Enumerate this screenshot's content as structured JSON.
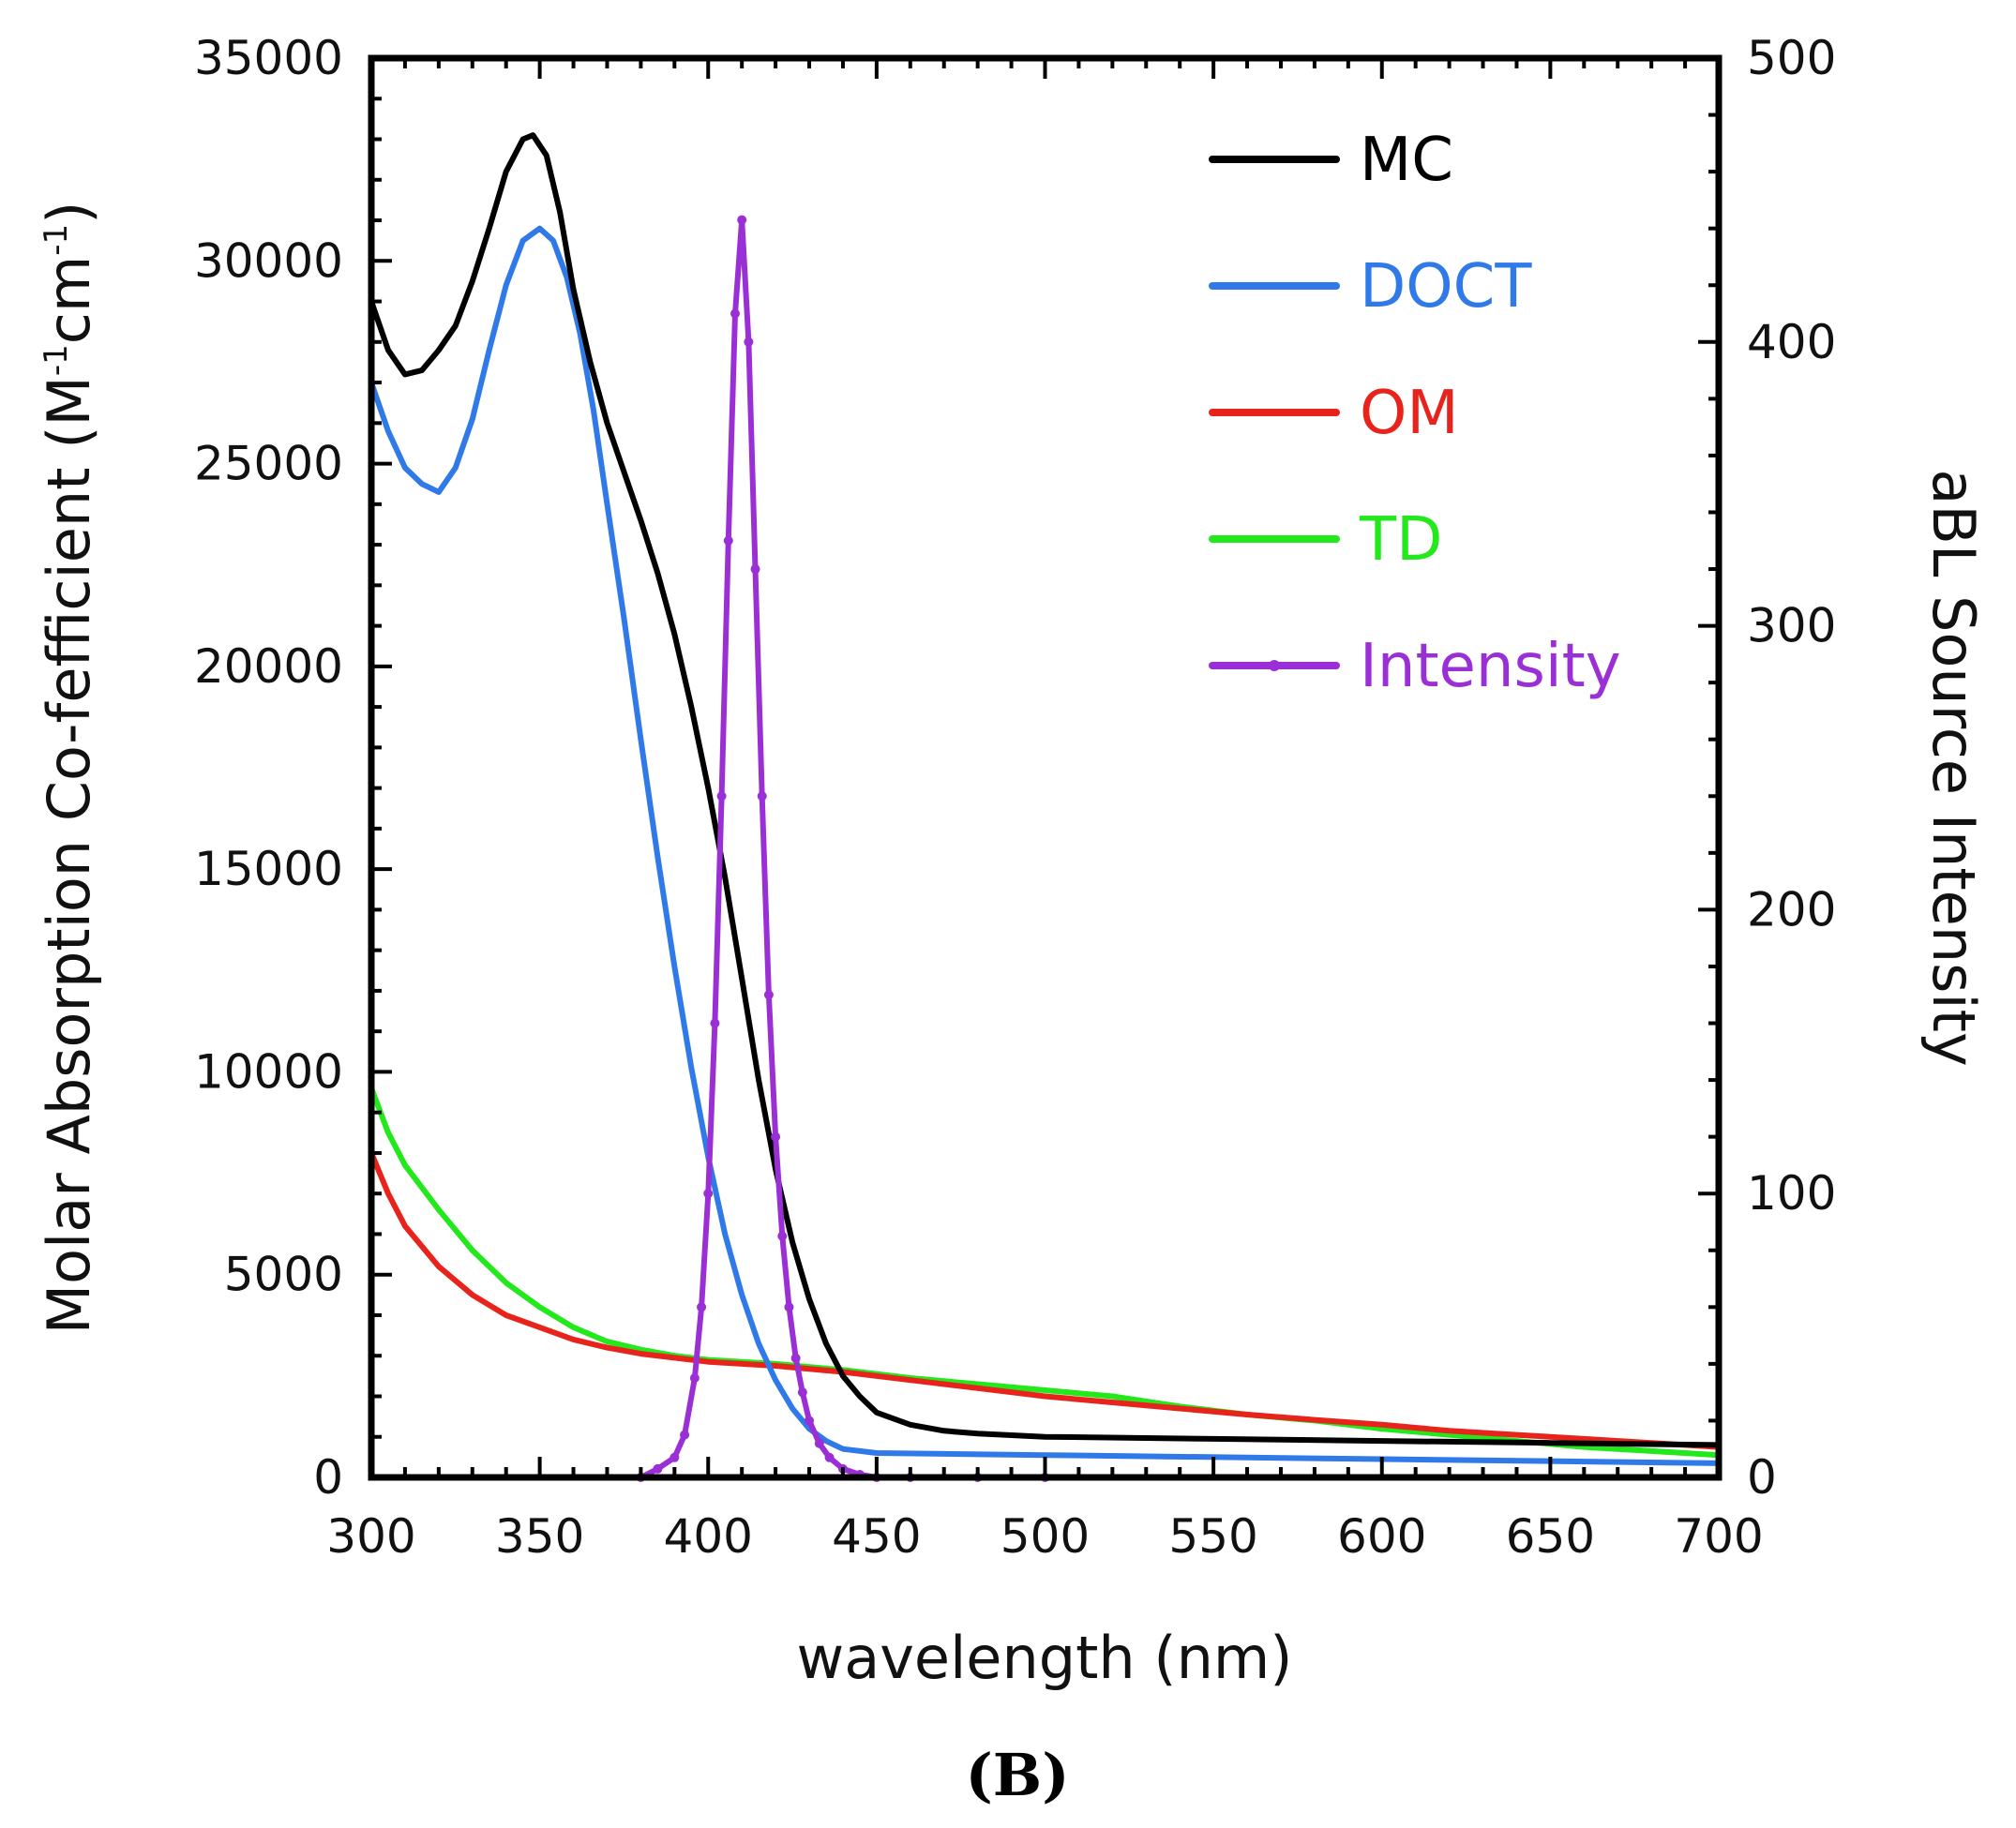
{
  "chart_data": {
    "type": "line",
    "title": "",
    "panel_label": "(B)",
    "xlabel": "wavelength (nm)",
    "ylabel_left": "Molar Absorption Co-fefficient (M-1cm-1)",
    "ylabel_left_parts": {
      "main": "Molar Absorption Co-fefficient (M",
      "sup1": "-1",
      "mid": "cm",
      "sup2": "-1",
      "end": ")"
    },
    "ylabel_right": "aBL Source Intensity",
    "xlim": [
      300,
      700
    ],
    "ylim_left": [
      0,
      35000
    ],
    "ylim_right": [
      0,
      500
    ],
    "x_ticks": [
      "300",
      "350",
      "400",
      "450",
      "500",
      "550",
      "600",
      "650",
      "700"
    ],
    "y_left_ticks": [
      "0",
      "5000",
      "10000",
      "15000",
      "20000",
      "25000",
      "30000",
      "35000"
    ],
    "y_right_ticks": [
      "0",
      "100",
      "200",
      "300",
      "400",
      "500"
    ],
    "legend_position": "top-right",
    "series": [
      {
        "name": "MC",
        "axis": "left",
        "color": "#000000",
        "points": [
          [
            300,
            29000
          ],
          [
            305,
            27800
          ],
          [
            310,
            27200
          ],
          [
            315,
            27300
          ],
          [
            320,
            27800
          ],
          [
            325,
            28400
          ],
          [
            330,
            29500
          ],
          [
            335,
            30800
          ],
          [
            340,
            32200
          ],
          [
            345,
            33000
          ],
          [
            348,
            33100
          ],
          [
            352,
            32600
          ],
          [
            356,
            31200
          ],
          [
            360,
            29300
          ],
          [
            365,
            27500
          ],
          [
            370,
            26000
          ],
          [
            375,
            24800
          ],
          [
            380,
            23600
          ],
          [
            385,
            22300
          ],
          [
            390,
            20800
          ],
          [
            395,
            19000
          ],
          [
            400,
            17000
          ],
          [
            405,
            14800
          ],
          [
            410,
            12300
          ],
          [
            415,
            9800
          ],
          [
            420,
            7600
          ],
          [
            425,
            5800
          ],
          [
            430,
            4400
          ],
          [
            435,
            3300
          ],
          [
            440,
            2500
          ],
          [
            445,
            2000
          ],
          [
            450,
            1600
          ],
          [
            460,
            1300
          ],
          [
            470,
            1150
          ],
          [
            480,
            1080
          ],
          [
            500,
            1000
          ],
          [
            550,
            950
          ],
          [
            600,
            900
          ],
          [
            650,
            850
          ],
          [
            700,
            800
          ]
        ]
      },
      {
        "name": "DOCT",
        "axis": "left",
        "color": "#2f79e8",
        "points": [
          [
            300,
            27000
          ],
          [
            305,
            25800
          ],
          [
            310,
            24900
          ],
          [
            315,
            24500
          ],
          [
            320,
            24300
          ],
          [
            325,
            24900
          ],
          [
            330,
            26100
          ],
          [
            335,
            27800
          ],
          [
            340,
            29400
          ],
          [
            345,
            30500
          ],
          [
            350,
            30800
          ],
          [
            354,
            30500
          ],
          [
            358,
            29600
          ],
          [
            362,
            28200
          ],
          [
            366,
            26300
          ],
          [
            370,
            24000
          ],
          [
            375,
            21200
          ],
          [
            380,
            18200
          ],
          [
            385,
            15300
          ],
          [
            390,
            12600
          ],
          [
            395,
            10100
          ],
          [
            400,
            7900
          ],
          [
            405,
            6000
          ],
          [
            410,
            4500
          ],
          [
            415,
            3300
          ],
          [
            420,
            2400
          ],
          [
            425,
            1700
          ],
          [
            430,
            1200
          ],
          [
            435,
            900
          ],
          [
            440,
            700
          ],
          [
            450,
            600
          ],
          [
            500,
            550
          ],
          [
            600,
            450
          ],
          [
            700,
            350
          ]
        ]
      },
      {
        "name": "OM",
        "axis": "left",
        "color": "#e8231c",
        "points": [
          [
            300,
            8000
          ],
          [
            305,
            7000
          ],
          [
            310,
            6200
          ],
          [
            320,
            5200
          ],
          [
            330,
            4500
          ],
          [
            340,
            4000
          ],
          [
            350,
            3700
          ],
          [
            360,
            3400
          ],
          [
            370,
            3200
          ],
          [
            380,
            3050
          ],
          [
            390,
            2950
          ],
          [
            400,
            2850
          ],
          [
            420,
            2750
          ],
          [
            440,
            2600
          ],
          [
            460,
            2400
          ],
          [
            480,
            2200
          ],
          [
            500,
            2000
          ],
          [
            520,
            1850
          ],
          [
            540,
            1700
          ],
          [
            560,
            1550
          ],
          [
            580,
            1420
          ],
          [
            600,
            1300
          ],
          [
            620,
            1150
          ],
          [
            640,
            1050
          ],
          [
            660,
            950
          ],
          [
            680,
            850
          ],
          [
            700,
            750
          ]
        ]
      },
      {
        "name": "TD",
        "axis": "left",
        "color": "#22e81c",
        "points": [
          [
            300,
            9600
          ],
          [
            305,
            8500
          ],
          [
            310,
            7700
          ],
          [
            320,
            6600
          ],
          [
            330,
            5600
          ],
          [
            340,
            4800
          ],
          [
            350,
            4200
          ],
          [
            360,
            3700
          ],
          [
            370,
            3350
          ],
          [
            380,
            3150
          ],
          [
            390,
            3000
          ],
          [
            400,
            2900
          ],
          [
            420,
            2800
          ],
          [
            440,
            2650
          ],
          [
            460,
            2450
          ],
          [
            480,
            2300
          ],
          [
            500,
            2150
          ],
          [
            520,
            2000
          ],
          [
            540,
            1750
          ],
          [
            560,
            1550
          ],
          [
            580,
            1400
          ],
          [
            600,
            1200
          ],
          [
            620,
            1050
          ],
          [
            640,
            900
          ],
          [
            660,
            750
          ],
          [
            680,
            650
          ],
          [
            700,
            550
          ]
        ]
      },
      {
        "name": "Intensity",
        "axis": "right",
        "color": "#9b2fd6",
        "marker": "dot",
        "points": [
          [
            380,
            0
          ],
          [
            385,
            3
          ],
          [
            390,
            7
          ],
          [
            393,
            15
          ],
          [
            396,
            35
          ],
          [
            398,
            60
          ],
          [
            400,
            100
          ],
          [
            402,
            160
          ],
          [
            404,
            240
          ],
          [
            406,
            330
          ],
          [
            408,
            410
          ],
          [
            410,
            443
          ],
          [
            412,
            400
          ],
          [
            414,
            320
          ],
          [
            416,
            240
          ],
          [
            418,
            170
          ],
          [
            420,
            120
          ],
          [
            422,
            85
          ],
          [
            424,
            60
          ],
          [
            426,
            42
          ],
          [
            428,
            30
          ],
          [
            430,
            20
          ],
          [
            433,
            12
          ],
          [
            436,
            7
          ],
          [
            440,
            3
          ],
          [
            445,
            1
          ],
          [
            450,
            0
          ],
          [
            460,
            0
          ],
          [
            480,
            0
          ],
          [
            500,
            0
          ]
        ]
      }
    ]
  }
}
